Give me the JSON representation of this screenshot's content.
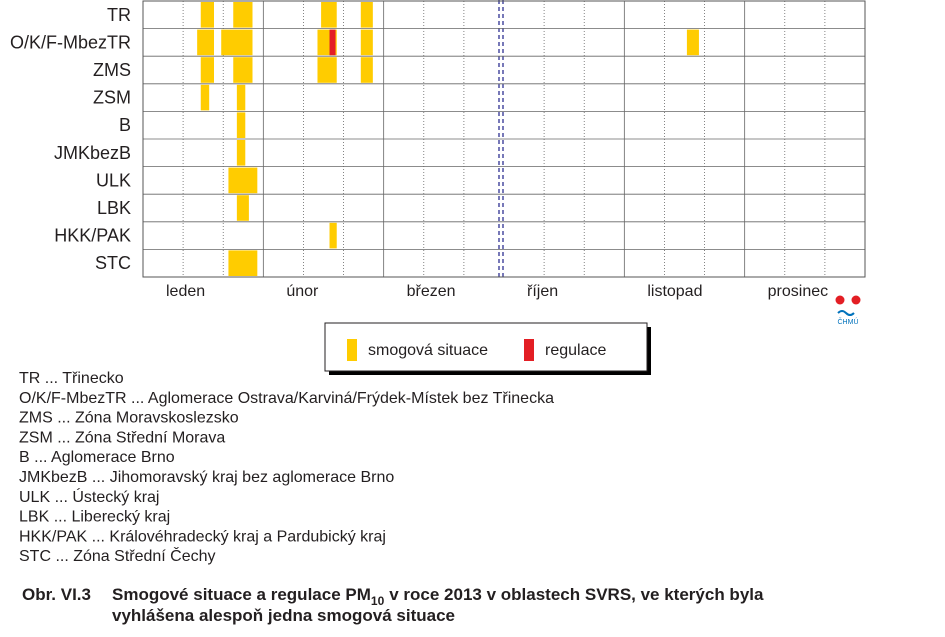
{
  "chart_data": {
    "type": "timeline",
    "rows": [
      "TR",
      "O/K/F-MbezTR",
      "ZMS",
      "ZSM",
      "B",
      "JMKbezB",
      "ULK",
      "LBK",
      "HKK/PAK",
      "STC"
    ],
    "months": [
      "leden",
      "únor",
      "březen",
      "říjen",
      "listopad",
      "prosinec"
    ],
    "xlim": [
      0,
      6
    ],
    "series": [
      {
        "name": "smogová situace",
        "color": "#ffcc00",
        "values": [
          [
            [
              0.48,
              0.59
            ],
            [
              0.75,
              0.91
            ],
            [
              1.48,
              1.61
            ],
            [
              1.81,
              1.91
            ]
          ],
          [
            [
              0.45,
              0.59
            ],
            [
              0.65,
              0.91
            ],
            [
              1.45,
              1.61
            ],
            [
              1.81,
              1.91
            ],
            [
              4.52,
              4.62
            ]
          ],
          [
            [
              0.48,
              0.59
            ],
            [
              0.75,
              0.91
            ],
            [
              1.45,
              1.61
            ],
            [
              1.81,
              1.91
            ]
          ],
          [
            [
              0.48,
              0.55
            ],
            [
              0.78,
              0.85
            ]
          ],
          [
            [
              0.78,
              0.85
            ]
          ],
          [
            [
              0.78,
              0.85
            ]
          ],
          [
            [
              0.71,
              0.95
            ]
          ],
          [
            [
              0.78,
              0.88
            ]
          ],
          [
            [
              1.55,
              1.61
            ]
          ],
          [
            [
              0.71,
              0.95
            ]
          ]
        ]
      },
      {
        "name": "regulace",
        "color": "#e31e24",
        "values": [
          [],
          [
            [
              1.55,
              1.6
            ]
          ],
          [],
          [],
          [],
          [],
          [],
          [],
          [],
          []
        ]
      }
    ]
  },
  "logo": "ČHMÚ",
  "glossary": [
    "TR ... Třinecko",
    "O/K/F-MbezTR ... Aglomerace Ostrava/Karviná/Frýdek-Místek bez Třinecka",
    "ZMS ... Zóna Moravskoslezsko",
    "ZSM ... Zóna Střední Morava",
    "B ... Aglomerace Brno",
    "JMKbezB ... Jihomoravský kraj bez aglomerace Brno",
    "ULK ... Ústecký kraj",
    "LBK ... Liberecký kraj",
    "HKK/PAK ... Královéhradecký kraj a Pardubický kraj",
    "STC ... Zóna Střední Čechy"
  ],
  "caption": {
    "number": "Obr. VI.3",
    "text": "Smogové situace a regulace PM",
    "subscript": "10",
    "text_end": "v roce 2013 v oblastech SVRS, ve kterých byla",
    "line2": "vyhlášena alespoň jedna smogová situace"
  }
}
